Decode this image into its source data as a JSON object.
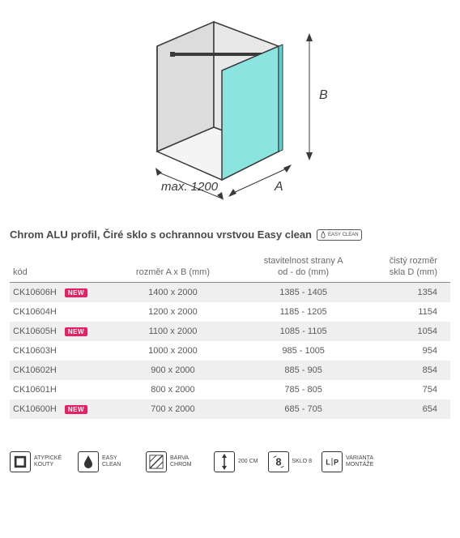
{
  "diagram": {
    "width_label": "max. 1200",
    "dim_a": "A",
    "dim_b": "B",
    "panel_color": "#8be4e0",
    "wall_color": "#dcdcdc",
    "line_color": "#3a3a3a"
  },
  "title": "Chrom ALU profil, Čiré sklo s ochrannou vrstvou Easy clean",
  "easy_clean_badge": "EASY CLEAN",
  "headers": {
    "kod": "kód",
    "rozmer": "rozměr A x B (mm)",
    "stav": "stavitelnost strany A\nod - do (mm)",
    "cisty": "čistý rozměr\nskla D (mm)"
  },
  "new_label": "NEW",
  "rows": [
    {
      "kod": "CK10606H",
      "new": true,
      "rozmer": "1400 x 2000",
      "stav": "1385 - 1405",
      "cisty": "1354",
      "alt": true
    },
    {
      "kod": "CK10604H",
      "new": false,
      "rozmer": "1200 x 2000",
      "stav": "1185 - 1205",
      "cisty": "1154",
      "alt": false
    },
    {
      "kod": "CK10605H",
      "new": true,
      "rozmer": "1100 x 2000",
      "stav": "1085 - 1105",
      "cisty": "1054",
      "alt": true
    },
    {
      "kod": "CK10603H",
      "new": false,
      "rozmer": "1000 x 2000",
      "stav": "985 - 1005",
      "cisty": "954",
      "alt": false
    },
    {
      "kod": "CK10602H",
      "new": false,
      "rozmer": "900 x 2000",
      "stav": "885 - 905",
      "cisty": "854",
      "alt": true
    },
    {
      "kod": "CK10601H",
      "new": false,
      "rozmer": "800 x 2000",
      "stav": "785 - 805",
      "cisty": "754",
      "alt": false
    },
    {
      "kod": "CK10600H",
      "new": true,
      "rozmer": "700 x 2000",
      "stav": "685 - 705",
      "cisty": "654",
      "alt": true
    }
  ],
  "features": [
    {
      "id": "atyp",
      "label": "ATYPICKÉ KOUTY"
    },
    {
      "id": "easy",
      "label": "EASY CLEAN"
    },
    {
      "id": "barva",
      "label": "BARVA CHROM"
    },
    {
      "id": "height",
      "label": "200 CM"
    },
    {
      "id": "sklo",
      "label": "SKLO 8"
    },
    {
      "id": "lp",
      "label": "VARIANTA MONTÁŽE"
    }
  ]
}
